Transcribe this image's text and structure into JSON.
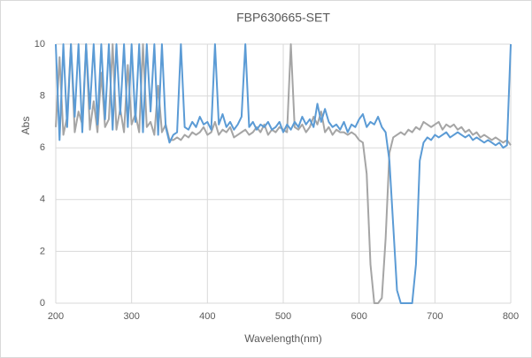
{
  "chart_data": {
    "type": "line",
    "title": "FBP630665-SET",
    "x_label": "Wavelength(nm)",
    "y_label": "Abs",
    "xlim": [
      200,
      800
    ],
    "ylim": [
      0,
      10
    ],
    "xticks": [
      200,
      300,
      400,
      500,
      600,
      700,
      800
    ],
    "yticks": [
      0,
      2,
      4,
      6,
      8,
      10
    ],
    "grid": true,
    "x": [
      200,
      205,
      210,
      215,
      220,
      225,
      230,
      235,
      240,
      245,
      250,
      255,
      260,
      265,
      270,
      275,
      280,
      285,
      290,
      295,
      300,
      305,
      310,
      315,
      320,
      325,
      330,
      335,
      340,
      345,
      350,
      355,
      360,
      365,
      370,
      375,
      380,
      385,
      390,
      395,
      400,
      405,
      410,
      415,
      420,
      425,
      430,
      435,
      440,
      445,
      450,
      455,
      460,
      465,
      470,
      475,
      480,
      485,
      490,
      495,
      500,
      505,
      510,
      515,
      520,
      525,
      530,
      535,
      540,
      545,
      550,
      555,
      560,
      565,
      570,
      575,
      580,
      585,
      590,
      595,
      600,
      605,
      610,
      615,
      620,
      625,
      630,
      635,
      640,
      645,
      650,
      655,
      660,
      665,
      670,
      675,
      680,
      685,
      690,
      695,
      700,
      705,
      710,
      715,
      720,
      725,
      730,
      735,
      740,
      745,
      750,
      755,
      760,
      765,
      770,
      775,
      780,
      785,
      790,
      795,
      800
    ],
    "series": [
      {
        "color": "#a5a5a5",
        "values": [
          6.8,
          9.5,
          6.5,
          7.2,
          10,
          6.6,
          7.4,
          6.9,
          10,
          6.7,
          7.8,
          6.6,
          8.9,
          6.8,
          7.1,
          10,
          6.7,
          7.5,
          6.6,
          9.2,
          6.9,
          7.3,
          6.6,
          10,
          6.8,
          7.0,
          6.5,
          8.4,
          6.6,
          6.9,
          6.3,
          6.3,
          6.4,
          6.3,
          6.5,
          6.4,
          6.6,
          6.5,
          6.6,
          6.8,
          6.5,
          6.6,
          7.0,
          6.5,
          6.7,
          6.6,
          6.8,
          6.4,
          6.5,
          6.6,
          6.7,
          6.5,
          6.6,
          6.8,
          6.6,
          6.9,
          6.5,
          6.7,
          6.6,
          6.8,
          6.7,
          6.6,
          10,
          6.8,
          6.7,
          6.9,
          6.6,
          6.8,
          7.2,
          6.9,
          7.4,
          6.6,
          6.8,
          6.5,
          6.7,
          6.6,
          6.6,
          6.5,
          6.6,
          6.5,
          6.3,
          6.2,
          5.0,
          1.5,
          0,
          0,
          0.2,
          2.5,
          5.8,
          6.4,
          6.5,
          6.6,
          6.5,
          6.7,
          6.6,
          6.8,
          6.7,
          7.0,
          6.9,
          6.8,
          6.9,
          7.0,
          6.7,
          6.9,
          6.8,
          6.9,
          6.7,
          6.8,
          6.6,
          6.7,
          6.5,
          6.6,
          6.4,
          6.5,
          6.4,
          6.3,
          6.4,
          6.3,
          6.2,
          6.3,
          6.1
        ]
      },
      {
        "color": "#5b9bd5",
        "values": [
          10,
          6.3,
          10,
          6.8,
          10,
          7.2,
          10,
          6.6,
          10,
          7.5,
          10,
          6.9,
          10,
          7.1,
          10,
          6.7,
          10,
          7.3,
          10,
          6.8,
          10,
          7.0,
          10,
          6.6,
          10,
          7.4,
          10,
          6.5,
          10,
          6.8,
          6.2,
          6.5,
          6.6,
          10,
          6.8,
          6.7,
          7.0,
          6.8,
          7.2,
          6.9,
          7.0,
          6.7,
          10,
          6.9,
          7.3,
          6.8,
          7.0,
          6.7,
          6.9,
          7.2,
          10,
          6.8,
          7.0,
          6.7,
          6.9,
          6.8,
          7.0,
          6.7,
          6.8,
          7.0,
          6.6,
          6.9,
          6.7,
          7.0,
          6.8,
          7.2,
          6.9,
          7.1,
          6.8,
          7.7,
          7.0,
          7.5,
          7.0,
          6.8,
          6.9,
          6.7,
          7.0,
          6.6,
          6.9,
          6.8,
          7.1,
          7.3,
          6.8,
          7.0,
          6.9,
          7.2,
          6.8,
          6.6,
          5.5,
          3.0,
          0.5,
          0,
          0,
          0,
          0,
          1.5,
          5.5,
          6.2,
          6.4,
          6.3,
          6.5,
          6.4,
          6.5,
          6.6,
          6.4,
          6.5,
          6.6,
          6.5,
          6.4,
          6.5,
          6.3,
          6.4,
          6.3,
          6.2,
          6.3,
          6.2,
          6.1,
          6.2,
          6.0,
          6.1,
          10
        ]
      }
    ]
  }
}
